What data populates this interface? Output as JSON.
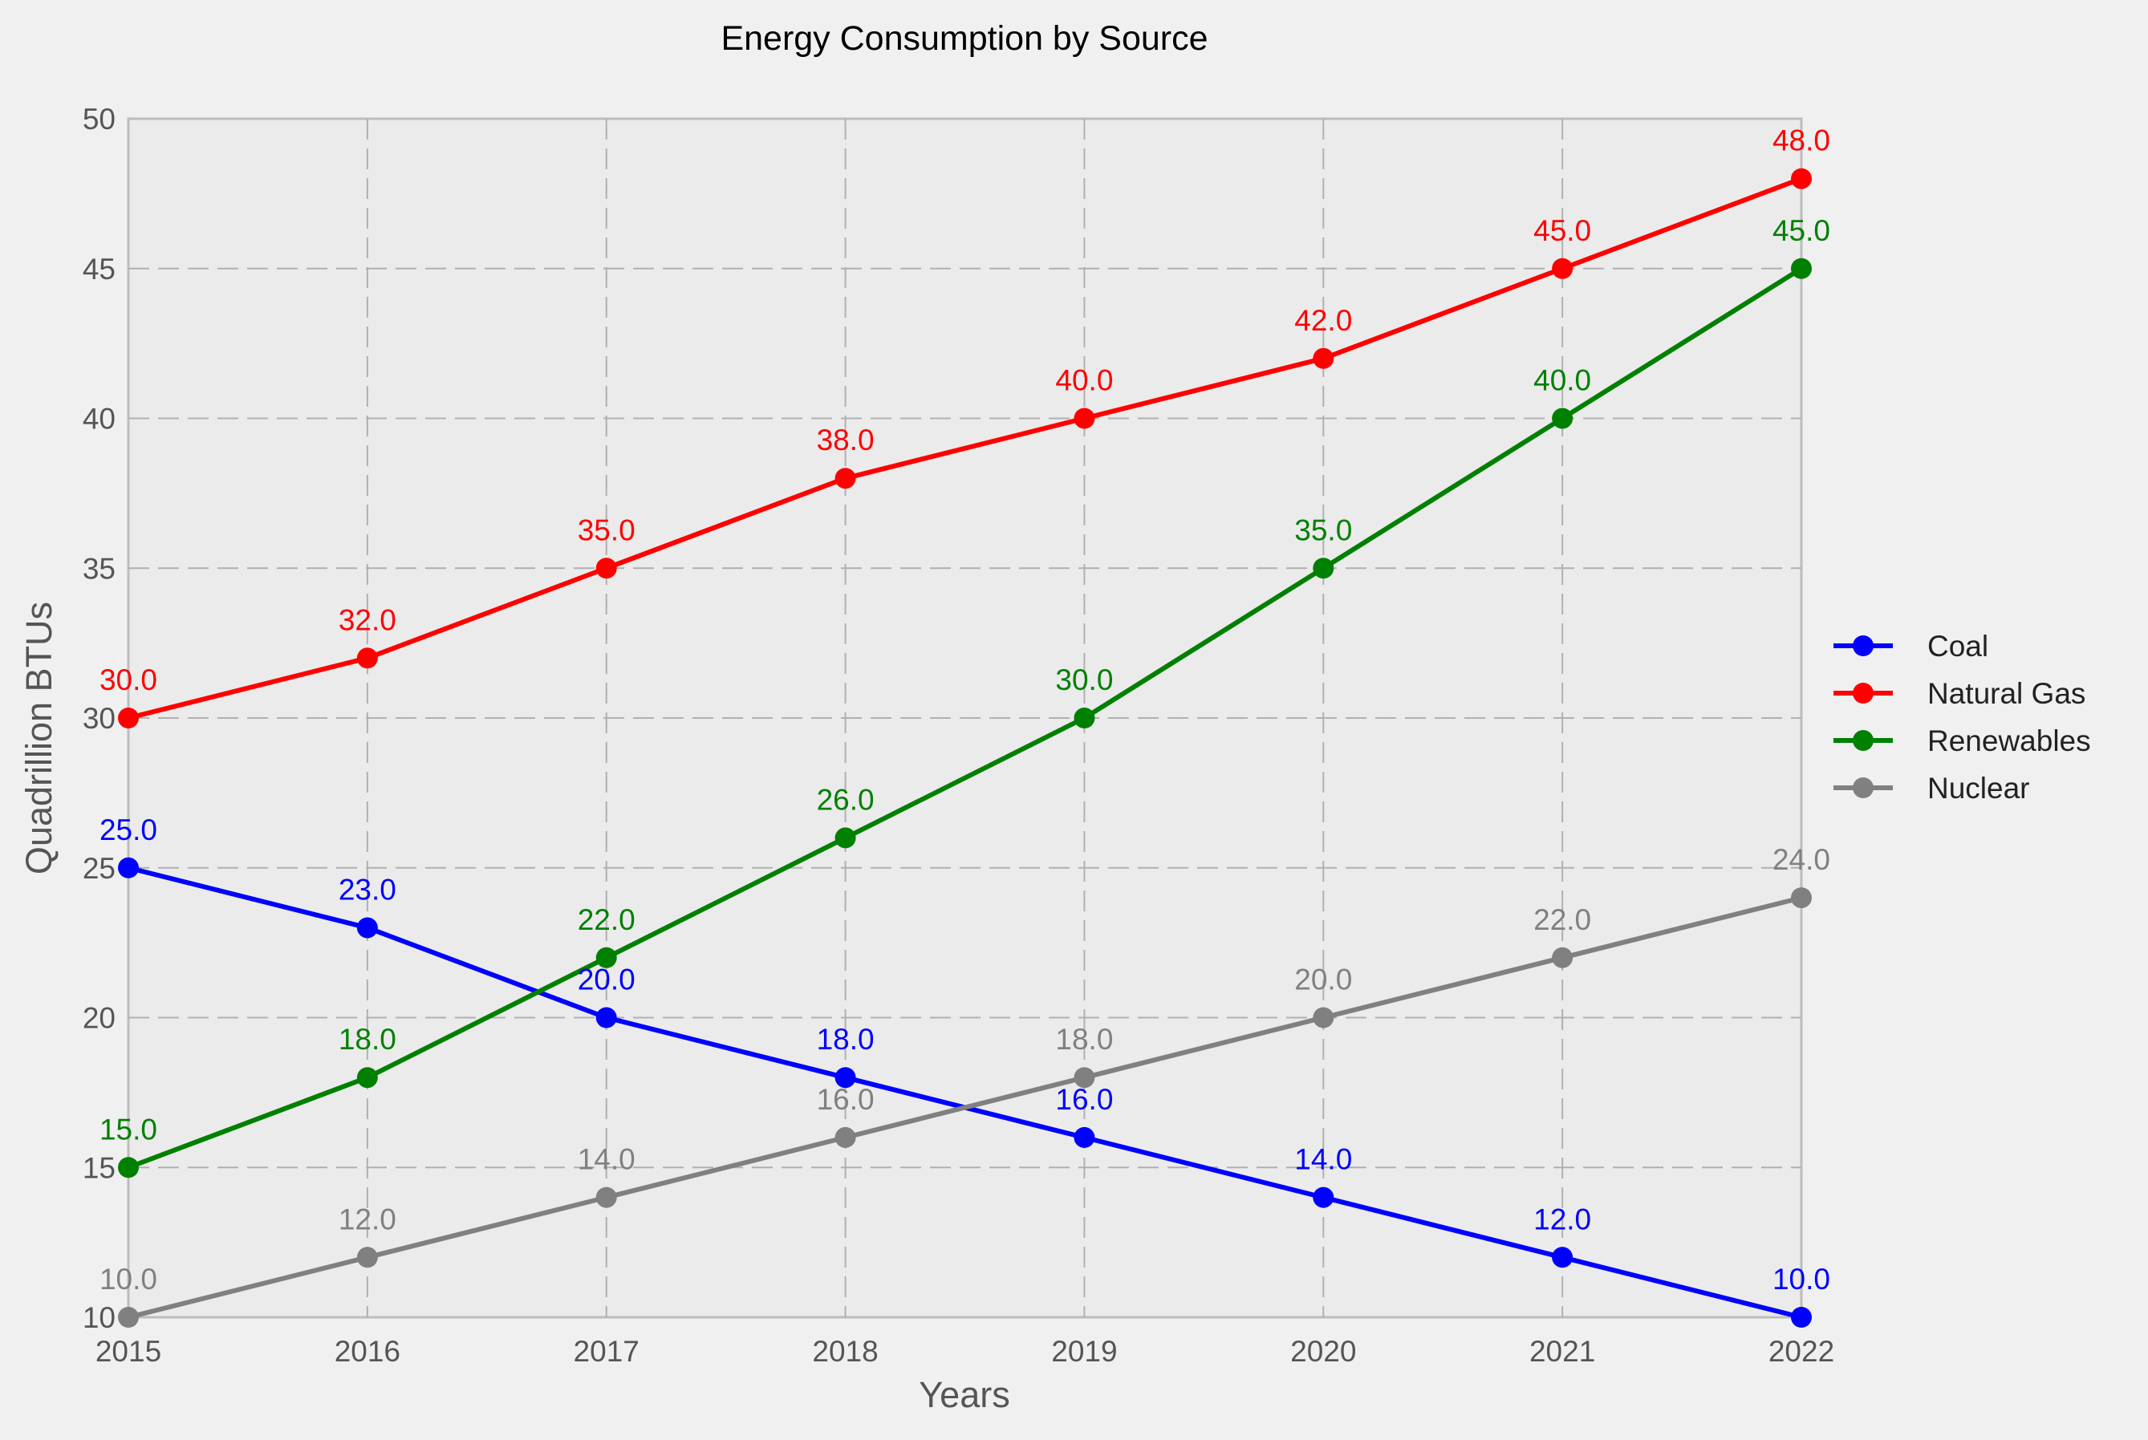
{
  "chart_data": {
    "type": "line",
    "title": "Energy Consumption by Source",
    "xlabel": "Years",
    "ylabel": "Quadrillion BTUs",
    "categories": [
      "2015",
      "2016",
      "2017",
      "2018",
      "2019",
      "2020",
      "2021",
      "2022"
    ],
    "y_ticks": [
      "10",
      "15",
      "20",
      "25",
      "30",
      "35",
      "40",
      "45",
      "50"
    ],
    "ylim": [
      10,
      50
    ],
    "grid": true,
    "legend_position": "right",
    "series": [
      {
        "name": "Coal",
        "color": "#0000ff",
        "values": [
          25.0,
          23.0,
          20.0,
          18.0,
          16.0,
          14.0,
          12.0,
          10.0
        ],
        "labels": [
          "25.0",
          "23.0",
          "20.0",
          "18.0",
          "16.0",
          "14.0",
          "12.0",
          "10.0"
        ]
      },
      {
        "name": "Natural Gas",
        "color": "#ff0000",
        "values": [
          30.0,
          32.0,
          35.0,
          38.0,
          40.0,
          42.0,
          45.0,
          48.0
        ],
        "labels": [
          "30.0",
          "32.0",
          "35.0",
          "38.0",
          "40.0",
          "42.0",
          "45.0",
          "48.0"
        ]
      },
      {
        "name": "Renewables",
        "color": "#008000",
        "values": [
          15.0,
          18.0,
          22.0,
          26.0,
          30.0,
          35.0,
          40.0,
          45.0
        ],
        "labels": [
          "15.0",
          "18.0",
          "22.0",
          "26.0",
          "30.0",
          "35.0",
          "40.0",
          "45.0"
        ]
      },
      {
        "name": "Nuclear",
        "color": "#808080",
        "values": [
          10.0,
          12.0,
          14.0,
          16.0,
          18.0,
          20.0,
          22.0,
          24.0
        ],
        "labels": [
          "10.0",
          "12.0",
          "14.0",
          "16.0",
          "18.0",
          "20.0",
          "22.0",
          "24.0"
        ]
      }
    ]
  }
}
